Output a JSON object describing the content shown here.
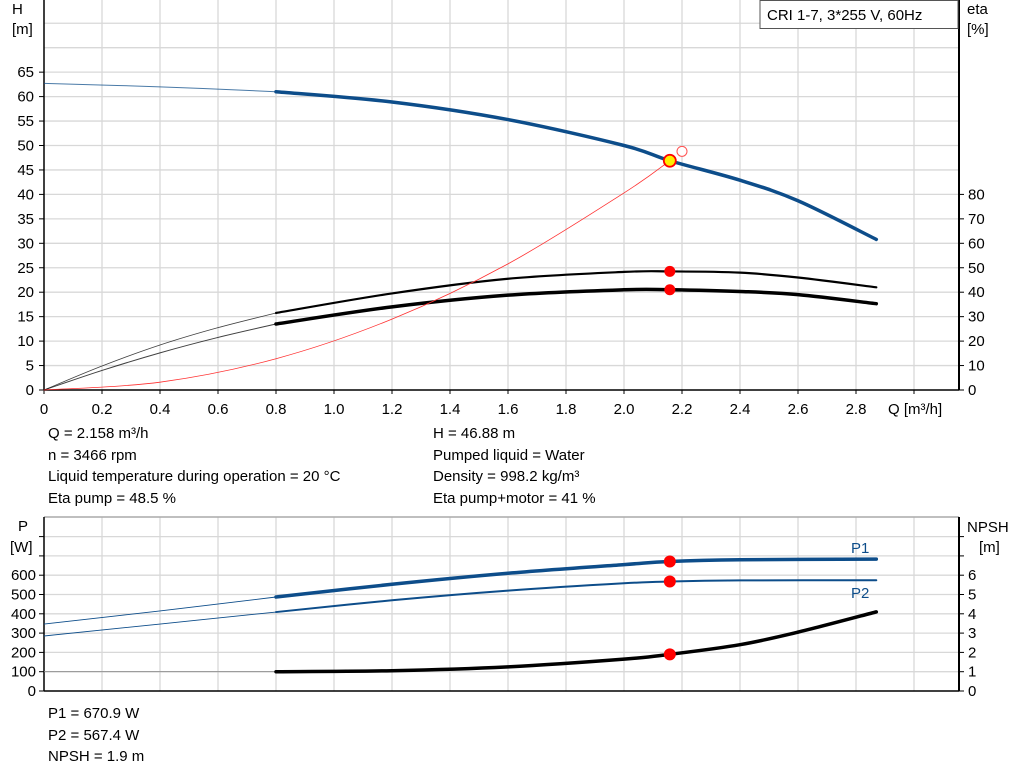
{
  "chart_data": [
    {
      "type": "line",
      "legend_box": "CRI 1-7, 3*255 V, 60Hz",
      "xlabel": "Q [m³/h]",
      "ylabel_left": [
        "H",
        "[m]"
      ],
      "ylabel_right": [
        "eta",
        "[%]"
      ],
      "xlim": [
        0,
        3.15
      ],
      "ylim_left": [
        0,
        80
      ],
      "ylim_right": [
        0,
        160
      ],
      "x_ticks": [
        "0",
        "0.2",
        "0.4",
        "0.6",
        "0.8",
        "1.0",
        "1.2",
        "1.4",
        "1.6",
        "1.8",
        "2.0",
        "2.2",
        "2.4",
        "2.6",
        "2.8"
      ],
      "y_ticks_left": [
        "0",
        "5",
        "10",
        "15",
        "20",
        "25",
        "30",
        "35",
        "40",
        "45",
        "50",
        "55",
        "60",
        "65"
      ],
      "y_ticks_right": [
        "0",
        "10",
        "20",
        "30",
        "40",
        "50",
        "60",
        "70",
        "80"
      ],
      "grid": true,
      "series": [
        {
          "key": "H",
          "axis": "left",
          "color": "#0d4d8a",
          "extrapolated": [
            [
              0,
              62.7
            ],
            [
              0.4,
              62.0
            ],
            [
              0.8,
              61.0
            ]
          ],
          "points": [
            [
              0.8,
              61.0
            ],
            [
              1.2,
              58.9
            ],
            [
              1.6,
              55.3
            ],
            [
              2.0,
              50.0
            ],
            [
              2.158,
              46.88
            ],
            [
              2.4,
              42.9
            ],
            [
              2.6,
              38.7
            ],
            [
              2.87,
              30.8
            ]
          ]
        },
        {
          "key": "eta_pump",
          "axis": "right",
          "color": "#000000",
          "width": "thin",
          "extrapolated": [
            [
              0,
              0
            ],
            [
              0.2,
              9.8
            ],
            [
              0.4,
              18.4
            ],
            [
              0.6,
              25.5
            ],
            [
              0.8,
              31.5
            ]
          ],
          "points": [
            [
              0.8,
              31.5
            ],
            [
              1.2,
              39.5
            ],
            [
              1.6,
              45.5
            ],
            [
              2.0,
              48.3
            ],
            [
              2.158,
              48.5
            ],
            [
              2.4,
              48.0
            ],
            [
              2.6,
              46.0
            ],
            [
              2.87,
              42.0
            ]
          ]
        },
        {
          "key": "eta_pump_motor",
          "axis": "right",
          "color": "#000000",
          "width": "thick",
          "extrapolated": [
            [
              0,
              0
            ],
            [
              0.2,
              8.0
            ],
            [
              0.4,
              15.2
            ],
            [
              0.6,
              21.5
            ],
            [
              0.8,
              27.0
            ]
          ],
          "points": [
            [
              0.8,
              27.0
            ],
            [
              1.2,
              34.0
            ],
            [
              1.6,
              38.8
            ],
            [
              2.0,
              41.0
            ],
            [
              2.158,
              41.0
            ],
            [
              2.4,
              40.3
            ],
            [
              2.6,
              39.0
            ],
            [
              2.87,
              35.3
            ]
          ]
        },
        {
          "key": "system_curve",
          "axis": "left",
          "color": "#ff3030",
          "points": [
            [
              0,
              0
            ],
            [
              0.4,
              1.6
            ],
            [
              0.8,
              6.4
            ],
            [
              1.2,
              14.5
            ],
            [
              1.6,
              25.8
            ],
            [
              2.0,
              40.3
            ],
            [
              2.158,
              46.88
            ]
          ]
        }
      ],
      "duty_point": {
        "q": 2.158,
        "h": 46.88,
        "eta_pump": 48.5,
        "eta_pump_motor": 41
      },
      "setpoint_marker": {
        "q": 2.2,
        "h": 48.8
      }
    },
    {
      "type": "line",
      "ylabel_left": [
        "P",
        "[W]"
      ],
      "ylabel_right": [
        "NPSH",
        "[m]"
      ],
      "xlim": [
        0,
        3.15
      ],
      "ylim_left": [
        0,
        900
      ],
      "ylim_right": [
        0,
        9
      ],
      "y_ticks_left": [
        "0",
        "100",
        "200",
        "300",
        "400",
        "500",
        "600"
      ],
      "y_ticks_right": [
        "0",
        "1",
        "2",
        "3",
        "4",
        "5",
        "6"
      ],
      "grid": true,
      "series": [
        {
          "name": "P1",
          "axis": "left",
          "color": "#0d4d8a",
          "extrapolated": [
            [
              0,
              347
            ],
            [
              0.4,
              415
            ],
            [
              0.8,
              487
            ]
          ],
          "points": [
            [
              0.8,
              487
            ],
            [
              1.2,
              553
            ],
            [
              1.6,
              610
            ],
            [
              2.0,
              655
            ],
            [
              2.158,
              670.9
            ],
            [
              2.4,
              680
            ],
            [
              2.87,
              683
            ]
          ]
        },
        {
          "name": "P2",
          "axis": "left",
          "color": "#0d4d8a",
          "extrapolated": [
            [
              0,
              285
            ],
            [
              0.4,
              347
            ],
            [
              0.8,
              409
            ]
          ],
          "points": [
            [
              0.8,
              409
            ],
            [
              1.2,
              470
            ],
            [
              1.6,
              520
            ],
            [
              2.0,
              558
            ],
            [
              2.158,
              567.4
            ],
            [
              2.4,
              573
            ],
            [
              2.87,
              574
            ]
          ]
        },
        {
          "key": "NPSH",
          "axis": "right",
          "color": "#000000",
          "extrapolated": [
            [
              0,
              1.0
            ],
            [
              0.8,
              1.0
            ]
          ],
          "points": [
            [
              0.8,
              1.0
            ],
            [
              1.2,
              1.05
            ],
            [
              1.6,
              1.25
            ],
            [
              2.0,
              1.65
            ],
            [
              2.158,
              1.9
            ],
            [
              2.4,
              2.4
            ],
            [
              2.6,
              3.05
            ],
            [
              2.87,
              4.1
            ]
          ]
        }
      ],
      "duty_point": {
        "q": 2.158,
        "p1": 670.9,
        "p2": 567.4,
        "npsh": 1.9
      }
    }
  ],
  "info_top_left": [
    "Q = 2.158 m³/h",
    "n = 3466 rpm",
    "Liquid temperature during operation = 20 °C",
    "Eta pump = 48.5 %"
  ],
  "info_top_right": [
    "H = 46.88 m",
    "Pumped liquid = Water",
    "Density = 998.2 kg/m³",
    "Eta pump+motor = 41 %"
  ],
  "info_bottom": [
    "P1 = 670.9 W",
    "P2 = 567.4 W",
    "NPSH = 1.9 m"
  ]
}
